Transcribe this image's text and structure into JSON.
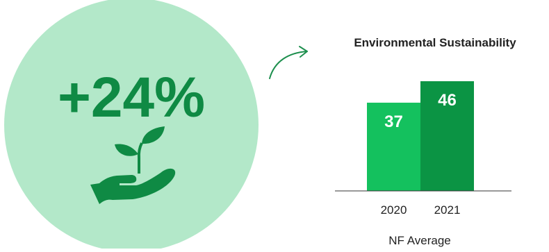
{
  "highlight": {
    "change_text": "+24%",
    "icon": "plant-in-hand-icon",
    "circle_color": "#b3e8c9",
    "text_color": "#0f8a44"
  },
  "arrow": {
    "icon": "curved-arrow-icon",
    "color": "#1d8f4e"
  },
  "chart_data": {
    "type": "bar",
    "title": "Environmental Sustainability",
    "categories": [
      "2020",
      "2021"
    ],
    "values": [
      37,
      46
    ],
    "data_labels": [
      "37",
      "46"
    ],
    "bar_colors": [
      "#14c15e",
      "#0b9444"
    ],
    "xlabel": "NF Average",
    "ylabel": "",
    "ylim": [
      0,
      56
    ],
    "grid": false,
    "legend": "none"
  }
}
